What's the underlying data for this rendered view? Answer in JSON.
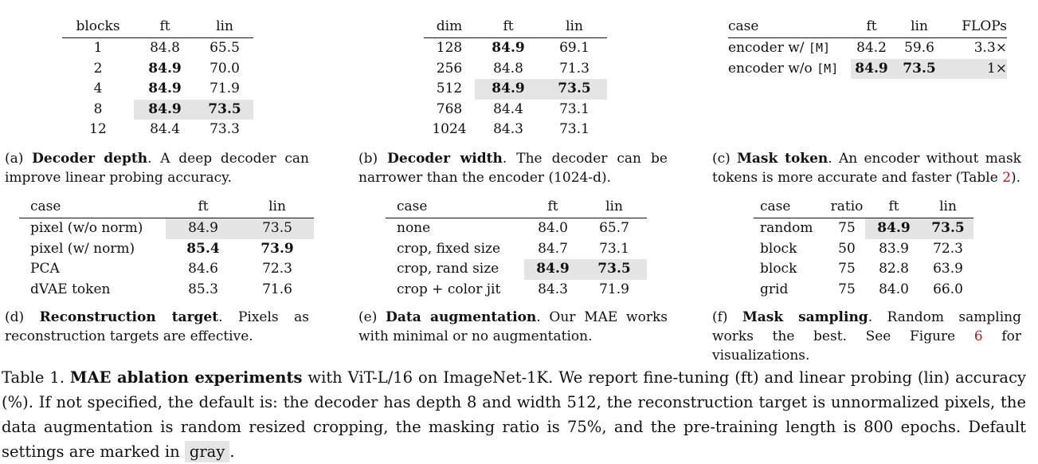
{
  "tables": {
    "a": {
      "headers": [
        "blocks",
        "ft",
        "lin"
      ],
      "rows": [
        [
          "1",
          "84.8",
          "65.5"
        ],
        [
          "2",
          "84.9",
          "70.0"
        ],
        [
          "4",
          "84.9",
          "71.9"
        ],
        [
          "8",
          "84.9",
          "73.5"
        ],
        [
          "12",
          "84.4",
          "73.3"
        ]
      ],
      "caption_prefix": "(a) ",
      "caption_bold": "Decoder depth",
      "caption_rest": ". A deep decoder can improve linear probing accuracy."
    },
    "b": {
      "headers": [
        "dim",
        "ft",
        "lin"
      ],
      "rows": [
        [
          "128",
          "84.9",
          "69.1"
        ],
        [
          "256",
          "84.8",
          "71.3"
        ],
        [
          "512",
          "84.9",
          "73.5"
        ],
        [
          "768",
          "84.4",
          "73.1"
        ],
        [
          "1024",
          "84.3",
          "73.1"
        ]
      ],
      "caption_prefix": "(b) ",
      "caption_bold": "Decoder width",
      "caption_rest": ". The decoder can be narrower than the encoder (1024-d)."
    },
    "c": {
      "headers": [
        "case",
        "ft",
        "lin",
        "FLOPs"
      ],
      "rows": [
        [
          "encoder w/ ",
          "[M]",
          "84.2",
          "59.6",
          "3.3×"
        ],
        [
          "encoder w/o ",
          "[M]",
          "84.9",
          "73.5",
          "1×"
        ]
      ],
      "caption_prefix": "(c) ",
      "caption_bold": "Mask token",
      "caption_rest": ". An encoder without mask tokens is more accurate and faster (Table ",
      "caption_ref": "2",
      "caption_end": ")."
    },
    "d": {
      "headers": [
        "case",
        "ft",
        "lin"
      ],
      "rows": [
        [
          "pixel (w/o norm)",
          "84.9",
          "73.5"
        ],
        [
          "pixel (w/ norm)",
          "85.4",
          "73.9"
        ],
        [
          "PCA",
          "84.6",
          "72.3"
        ],
        [
          "dVAE token",
          "85.3",
          "71.6"
        ]
      ],
      "caption_prefix": "(d) ",
      "caption_bold": "Reconstruction target",
      "caption_rest": ". Pixels as reconstruction targets are effective."
    },
    "e": {
      "headers": [
        "case",
        "ft",
        "lin"
      ],
      "rows": [
        [
          "none",
          "84.0",
          "65.7"
        ],
        [
          "crop, fixed size",
          "84.7",
          "73.1"
        ],
        [
          "crop, rand size",
          "84.9",
          "73.5"
        ],
        [
          "crop + color jit",
          "84.3",
          "71.9"
        ]
      ],
      "caption_prefix": "(e) ",
      "caption_bold": "Data augmentation",
      "caption_rest": ". Our MAE works with minimal or no augmentation."
    },
    "f": {
      "headers": [
        "case",
        "ratio",
        "ft",
        "lin"
      ],
      "rows": [
        [
          "random",
          "75",
          "84.9",
          "73.5"
        ],
        [
          "block",
          "50",
          "83.9",
          "72.3"
        ],
        [
          "block",
          "75",
          "82.8",
          "63.9"
        ],
        [
          "grid",
          "75",
          "84.0",
          "66.0"
        ]
      ],
      "caption_prefix": "(f) ",
      "caption_bold": "Mask sampling",
      "caption_rest": ". Random sampling works the best. See Figure ",
      "caption_ref": "6",
      "caption_end": " for visualizations."
    }
  },
  "main_caption": {
    "prefix": "Table 1. ",
    "bold": "MAE ablation experiments",
    "text": " with ViT-L/16 on ImageNet-1K. We report fine-tuning (ft) and linear probing (lin) accuracy (%). If not specified, the default is: the decoder has depth 8 and width 512, the reconstruction target is unnormalized pixels, the data augmentation is random resized cropping, the masking ratio is 75%, and the pre-training length is 800 epochs. Default settings are marked in ",
    "gray_word": "gray",
    "end": "."
  }
}
